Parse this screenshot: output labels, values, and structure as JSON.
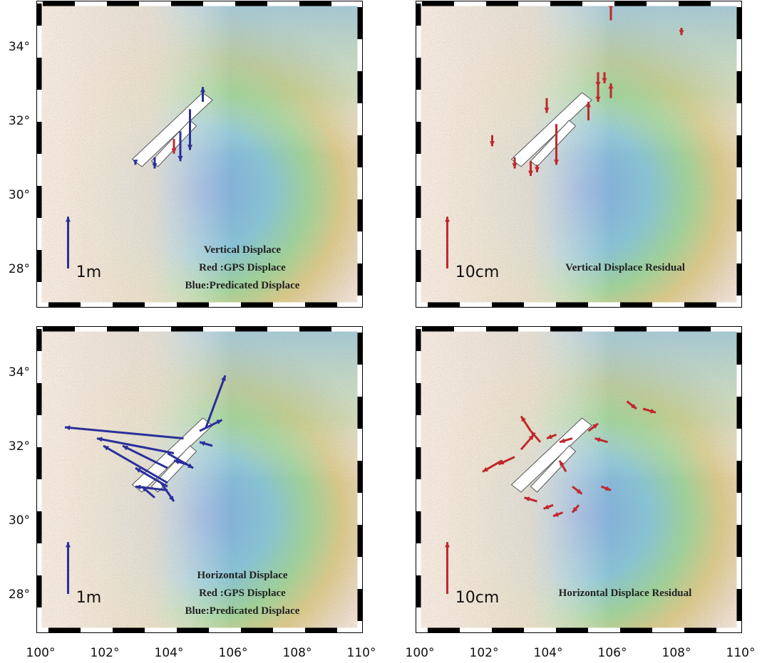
{
  "panels": [
    {
      "scale_label": "1m",
      "caption": [
        "Vertical Displace",
        "Red :GPS Displace",
        "Blue:Predicated Displace"
      ]
    },
    {
      "scale_label": "10cm",
      "caption": [
        "Vertical Displace Residual"
      ]
    },
    {
      "scale_label": "1m",
      "caption": [
        "Horizontal Displace",
        "Red :GPS Displace",
        "Blue:Predicated Displace"
      ]
    },
    {
      "scale_label": "10cm",
      "caption": [
        "Horizontal Displace Residual"
      ]
    }
  ],
  "latitude_labels": [
    "34°",
    "32°",
    "30°",
    "28°"
  ],
  "longitude_labels": [
    "100°",
    "102°",
    "104°",
    "106°",
    "108°",
    "110°"
  ]
}
